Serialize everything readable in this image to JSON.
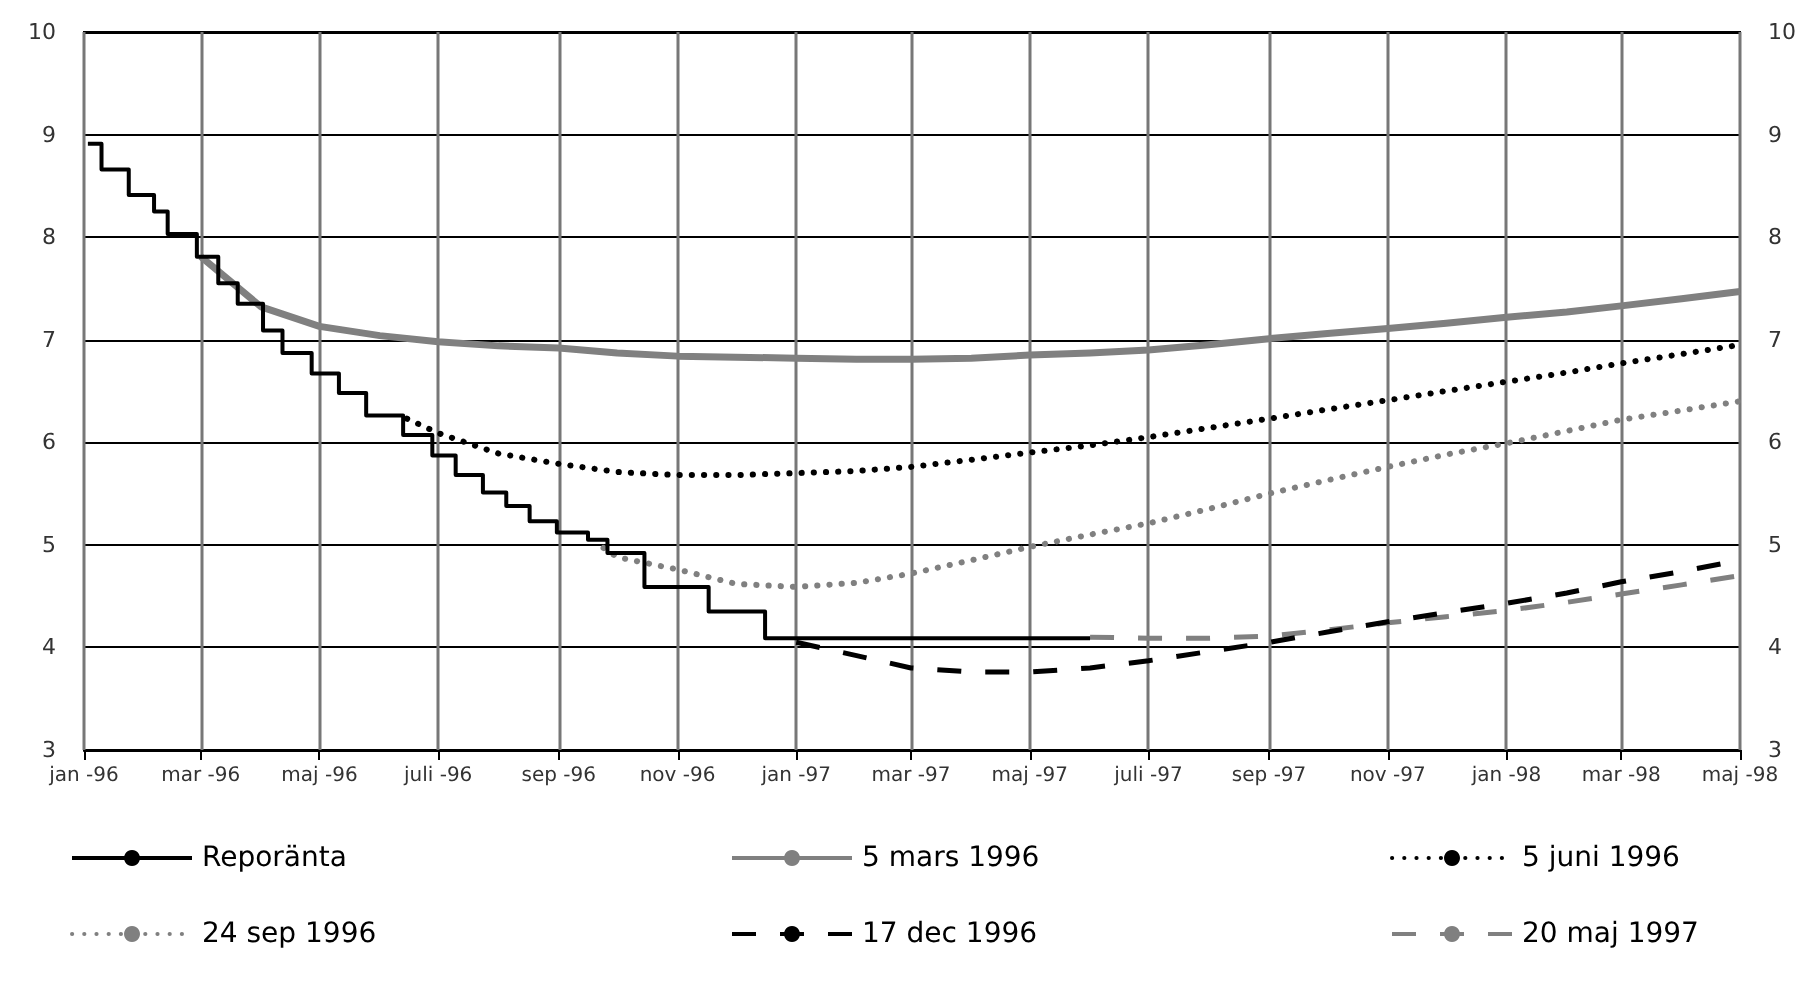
{
  "chart_data": {
    "type": "line",
    "xlim": [
      "1996-01",
      "1998-05"
    ],
    "xticks": [
      {
        "value": "1996-01",
        "label": "jan -96"
      },
      {
        "value": "1996-03",
        "label": "mar -96"
      },
      {
        "value": "1996-05",
        "label": "maj -96"
      },
      {
        "value": "1996-07",
        "label": "juli -96"
      },
      {
        "value": "1996-09",
        "label": "sep -96"
      },
      {
        "value": "1996-11",
        "label": "nov -96"
      },
      {
        "value": "1997-01",
        "label": "jan -97"
      },
      {
        "value": "1997-03",
        "label": "mar -97"
      },
      {
        "value": "1997-05",
        "label": "maj -97"
      },
      {
        "value": "1997-07",
        "label": "juli -97"
      },
      {
        "value": "1997-09",
        "label": "sep -97"
      },
      {
        "value": "1997-11",
        "label": "nov -97"
      },
      {
        "value": "1998-01",
        "label": "jan -98"
      },
      {
        "value": "1998-03",
        "label": "mar -98"
      },
      {
        "value": "1998-05",
        "label": "maj -98"
      }
    ],
    "ylim": [
      3,
      10
    ],
    "yticks": [
      3,
      4,
      5,
      6,
      7,
      8,
      9,
      10
    ],
    "y2lim": [
      3,
      10
    ],
    "y2ticks": [
      3,
      4,
      5,
      6,
      7,
      8,
      9,
      10
    ],
    "grid": true,
    "legend": "bottom",
    "series": [
      {
        "name": "Reporänta",
        "type": "step",
        "color": "#000000",
        "line_style": "solid",
        "x": [
          "1996-01-03",
          "1996-01-10",
          "1996-01-24",
          "1996-02-06",
          "1996-02-13",
          "1996-02-28",
          "1996-03-10",
          "1996-03-20",
          "1996-04-02",
          "1996-04-12",
          "1996-04-27",
          "1996-05-11",
          "1996-05-25",
          "1996-06-13",
          "1996-06-28",
          "1996-07-10",
          "1996-07-24",
          "1996-08-05",
          "1996-08-17",
          "1996-08-31",
          "1996-09-16",
          "1996-09-26",
          "1996-10-15",
          "1996-11-17",
          "1996-12-16",
          "1997-06-01"
        ],
        "values": [
          8.91,
          8.66,
          8.41,
          8.25,
          8.03,
          7.81,
          7.55,
          7.35,
          7.09,
          6.87,
          6.67,
          6.48,
          6.26,
          6.07,
          5.87,
          5.68,
          5.51,
          5.38,
          5.23,
          5.12,
          5.05,
          4.92,
          4.59,
          4.35,
          4.09,
          4.09
        ]
      },
      {
        "name": "5 mars 1996",
        "color": "#808080",
        "line_style": "solid",
        "x": [
          "1996-03",
          "1996-04",
          "1996-05",
          "1996-06",
          "1996-07",
          "1996-08",
          "1996-09",
          "1996-10",
          "1996-11",
          "1996-12",
          "1997-01",
          "1997-02",
          "1997-03",
          "1997-04",
          "1997-05",
          "1997-06",
          "1997-07",
          "1997-08",
          "1997-09",
          "1997-10",
          "1997-11",
          "1997-12",
          "1998-01",
          "1998-02",
          "1998-03",
          "1998-04",
          "1998-05"
        ],
        "values": [
          7.81,
          7.32,
          7.13,
          7.04,
          6.98,
          6.94,
          6.92,
          6.87,
          6.84,
          6.83,
          6.82,
          6.81,
          6.81,
          6.82,
          6.85,
          6.87,
          6.9,
          6.95,
          7.01,
          7.06,
          7.11,
          7.16,
          7.22,
          7.27,
          7.33,
          7.4,
          7.47
        ]
      },
      {
        "name": "5 juni 1996",
        "color": "#000000",
        "line_style": "dotted",
        "x": [
          "1996-06-15",
          "1996-07",
          "1996-08",
          "1996-09",
          "1996-10",
          "1996-11",
          "1996-12",
          "1997-01",
          "1997-02",
          "1997-03",
          "1997-04",
          "1997-05",
          "1997-06",
          "1997-07",
          "1997-08",
          "1997-09",
          "1997-10",
          "1997-11",
          "1997-12",
          "1998-01",
          "1998-02",
          "1998-03",
          "1998-04",
          "1998-05"
        ],
        "values": [
          6.23,
          6.09,
          5.89,
          5.79,
          5.71,
          5.68,
          5.68,
          5.7,
          5.72,
          5.76,
          5.83,
          5.9,
          5.97,
          6.05,
          6.14,
          6.23,
          6.32,
          6.41,
          6.5,
          6.59,
          6.68,
          6.77,
          6.86,
          6.95
        ]
      },
      {
        "name": "24 sep 1996",
        "color": "#808080",
        "line_style": "dotted",
        "x": [
          "1996-09-24",
          "1996-10",
          "1996-11",
          "1996-12",
          "1997-01",
          "1997-02",
          "1997-03",
          "1997-04",
          "1997-05",
          "1997-06",
          "1997-07",
          "1997-08",
          "1997-09",
          "1997-10",
          "1997-11",
          "1997-12",
          "1998-01",
          "1998-02",
          "1998-03",
          "1998-04",
          "1998-05"
        ],
        "values": [
          4.97,
          4.88,
          4.76,
          4.62,
          4.59,
          4.63,
          4.72,
          4.85,
          4.98,
          5.1,
          5.21,
          5.35,
          5.5,
          5.63,
          5.76,
          5.88,
          5.99,
          6.11,
          6.22,
          6.31,
          6.4
        ]
      },
      {
        "name": "17 dec 1996",
        "color": "#000000",
        "line_style": "dashed",
        "x": [
          "1997-01",
          "1997-02",
          "1997-03",
          "1997-04",
          "1997-05",
          "1997-06",
          "1997-07",
          "1997-08",
          "1997-09",
          "1997-10",
          "1997-11",
          "1997-12",
          "1998-01",
          "1998-02",
          "1998-03",
          "1998-04",
          "1998-05"
        ],
        "values": [
          4.05,
          3.92,
          3.8,
          3.76,
          3.76,
          3.8,
          3.87,
          3.96,
          4.05,
          4.15,
          4.25,
          4.34,
          4.43,
          4.53,
          4.64,
          4.74,
          4.85
        ]
      },
      {
        "name": "20 maj 1997",
        "color": "#808080",
        "line_style": "dashed",
        "x": [
          "1997-06",
          "1997-07",
          "1997-08",
          "1997-09",
          "1997-10",
          "1997-11",
          "1997-12",
          "1998-01",
          "1998-02",
          "1998-03",
          "1998-04",
          "1998-05"
        ],
        "values": [
          4.1,
          4.09,
          4.09,
          4.11,
          4.17,
          4.24,
          4.3,
          4.36,
          4.44,
          4.52,
          4.61,
          4.7
        ]
      }
    ]
  }
}
